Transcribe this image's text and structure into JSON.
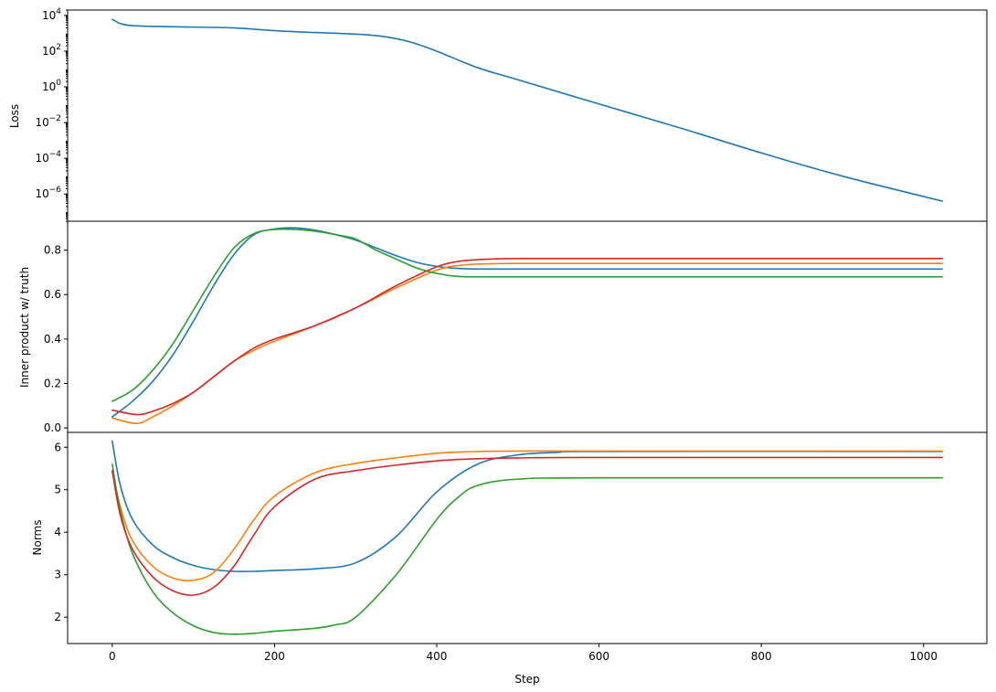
{
  "colors": {
    "blue": "#1f77b4",
    "orange": "#ff7f0e",
    "green": "#2ca02c",
    "red": "#d62728"
  },
  "chart_data": [
    {
      "type": "line",
      "yscale": "log",
      "ylabel": "Loss",
      "xlabel": "",
      "xlim": [
        -55,
        1078
      ],
      "ylim": [
        3e-08,
        20000
      ],
      "yticks": [
        10000.0,
        100.0,
        1,
        0.01,
        0.0001,
        1e-06
      ],
      "ytick_labels": [
        {
          "base": "10",
          "exp": "4"
        },
        {
          "base": "10",
          "exp": "2"
        },
        {
          "base": "10",
          "exp": "0"
        },
        {
          "base": "10",
          "exp": "−2"
        },
        {
          "base": "10",
          "exp": "−4"
        },
        {
          "base": "10",
          "exp": "−6"
        }
      ],
      "grid": false,
      "series": [
        {
          "color": "#1f77b4",
          "x": [
            0,
            5,
            10,
            20,
            40,
            80,
            150,
            200,
            250,
            300,
            330,
            350,
            370,
            400,
            450,
            500,
            600,
            700,
            800,
            900,
            1023
          ],
          "y": [
            6000,
            4500,
            3500,
            2800,
            2500,
            2300,
            2000,
            1400,
            1100,
            900,
            700,
            500,
            300,
            100,
            12,
            2.5,
            0.11,
            0.005,
            0.0002,
            1e-05,
            4e-07
          ]
        }
      ]
    },
    {
      "type": "line",
      "ylabel": "Inner product w/ truth",
      "xlabel": "",
      "xlim": [
        -55,
        1078
      ],
      "ylim": [
        -0.02,
        0.93
      ],
      "yticks": [
        0.0,
        0.2,
        0.4,
        0.6,
        0.8
      ],
      "ytick_labels": [
        "0.0",
        "0.2",
        "0.4",
        "0.6",
        "0.8"
      ],
      "grid": false,
      "series": [
        {
          "color": "#1f77b4",
          "x": [
            0,
            25,
            50,
            75,
            100,
            125,
            150,
            175,
            200,
            225,
            250,
            275,
            300,
            325,
            350,
            375,
            400,
            425,
            450,
            500,
            600,
            1023
          ],
          "y": [
            0.05,
            0.12,
            0.21,
            0.33,
            0.48,
            0.64,
            0.78,
            0.87,
            0.895,
            0.9,
            0.89,
            0.87,
            0.845,
            0.81,
            0.775,
            0.745,
            0.727,
            0.718,
            0.715,
            0.715,
            0.715,
            0.715
          ]
        },
        {
          "color": "#ff7f0e",
          "x": [
            0,
            30,
            50,
            75,
            100,
            125,
            150,
            175,
            200,
            250,
            300,
            350,
            400,
            425,
            450,
            500,
            600,
            1023
          ],
          "y": [
            0.045,
            0.02,
            0.05,
            0.1,
            0.16,
            0.23,
            0.3,
            0.35,
            0.39,
            0.46,
            0.54,
            0.63,
            0.71,
            0.73,
            0.737,
            0.74,
            0.74,
            0.74
          ]
        },
        {
          "color": "#2ca02c",
          "x": [
            0,
            25,
            50,
            75,
            100,
            125,
            150,
            175,
            200,
            225,
            250,
            275,
            300,
            325,
            350,
            375,
            400,
            425,
            450,
            500,
            1023
          ],
          "y": [
            0.12,
            0.17,
            0.26,
            0.38,
            0.53,
            0.68,
            0.81,
            0.875,
            0.893,
            0.893,
            0.885,
            0.87,
            0.85,
            0.8,
            0.76,
            0.72,
            0.695,
            0.682,
            0.68,
            0.68,
            0.68
          ]
        },
        {
          "color": "#d62728",
          "x": [
            0,
            30,
            50,
            75,
            100,
            125,
            150,
            175,
            200,
            250,
            300,
            350,
            400,
            425,
            450,
            500,
            600,
            1023
          ],
          "y": [
            0.08,
            0.06,
            0.075,
            0.11,
            0.16,
            0.23,
            0.3,
            0.36,
            0.4,
            0.46,
            0.54,
            0.64,
            0.725,
            0.748,
            0.757,
            0.762,
            0.762,
            0.762
          ]
        }
      ]
    },
    {
      "type": "line",
      "ylabel": "Norms",
      "xlabel": "Step",
      "xlim": [
        -55,
        1078
      ],
      "ylim": [
        1.38,
        6.35
      ],
      "xticks": [
        0,
        200,
        400,
        600,
        800,
        1000
      ],
      "xtick_labels": [
        "0",
        "200",
        "400",
        "600",
        "800",
        "1000"
      ],
      "yticks": [
        2,
        3,
        4,
        5,
        6
      ],
      "ytick_labels": [
        "2",
        "3",
        "4",
        "5",
        "6"
      ],
      "grid": false,
      "series": [
        {
          "color": "#1f77b4",
          "x": [
            0,
            10,
            25,
            50,
            75,
            100,
            125,
            150,
            175,
            200,
            250,
            300,
            350,
            400,
            450,
            500,
            550,
            600,
            1023
          ],
          "y": [
            6.15,
            5.1,
            4.3,
            3.7,
            3.4,
            3.22,
            3.12,
            3.08,
            3.08,
            3.1,
            3.14,
            3.28,
            3.9,
            4.95,
            5.6,
            5.82,
            5.88,
            5.9,
            5.9
          ]
        },
        {
          "color": "#ff7f0e",
          "x": [
            0,
            10,
            25,
            50,
            75,
            100,
            125,
            150,
            175,
            200,
            250,
            300,
            350,
            400,
            450,
            500,
            600,
            1023
          ],
          "y": [
            5.45,
            4.6,
            3.8,
            3.2,
            2.92,
            2.87,
            3.05,
            3.6,
            4.3,
            4.85,
            5.4,
            5.62,
            5.75,
            5.86,
            5.9,
            5.91,
            5.91,
            5.91
          ]
        },
        {
          "color": "#2ca02c",
          "x": [
            0,
            10,
            25,
            50,
            75,
            100,
            125,
            150,
            175,
            200,
            250,
            275,
            300,
            350,
            400,
            425,
            450,
            500,
            600,
            1023
          ],
          "y": [
            5.6,
            4.5,
            3.5,
            2.6,
            2.1,
            1.8,
            1.64,
            1.6,
            1.62,
            1.67,
            1.74,
            1.82,
            2.0,
            3.0,
            4.3,
            4.8,
            5.1,
            5.25,
            5.28,
            5.28
          ]
        },
        {
          "color": "#d62728",
          "x": [
            0,
            10,
            25,
            50,
            75,
            100,
            125,
            150,
            175,
            200,
            250,
            300,
            350,
            400,
            450,
            500,
            600,
            1023
          ],
          "y": [
            5.45,
            4.4,
            3.6,
            2.95,
            2.62,
            2.52,
            2.7,
            3.2,
            3.95,
            4.6,
            5.25,
            5.45,
            5.58,
            5.68,
            5.73,
            5.75,
            5.76,
            5.76
          ]
        }
      ]
    }
  ]
}
